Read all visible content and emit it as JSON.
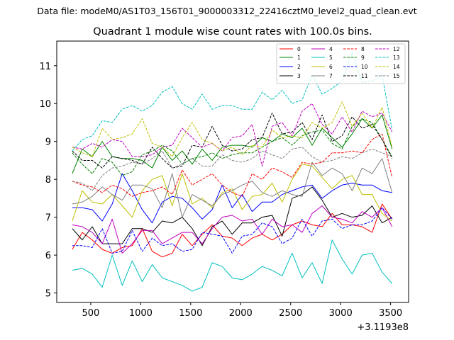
{
  "suptitle": "Data file: modeM0/AS1T03_156T01_9000003312_22416cztM0_level2_quad_clean.evt",
  "chart_data": {
    "type": "line",
    "title": "Quadrant 1 module wise count rates with 100.0s bins.",
    "xlabel": "",
    "ylabel": "",
    "x_offset_label": "+3.1193e8",
    "xlim": [
      160,
      3680
    ],
    "ylim": [
      4.75,
      11.65
    ],
    "xticks": [
      500,
      1000,
      1500,
      2000,
      2500,
      3000,
      3500
    ],
    "yticks": [
      5,
      6,
      7,
      8,
      9,
      10,
      11
    ],
    "grid": false,
    "legend_position": "top-right",
    "x": [
      315,
      415,
      515,
      615,
      715,
      815,
      915,
      1015,
      1115,
      1215,
      1315,
      1415,
      1515,
      1615,
      1715,
      1815,
      1915,
      2015,
      2115,
      2215,
      2315,
      2415,
      2515,
      2615,
      2715,
      2815,
      2915,
      3015,
      3115,
      3215,
      3315,
      3415,
      3515
    ],
    "series": [
      {
        "name": "0",
        "color": "#ff0000",
        "dash": "solid",
        "values": [
          6.15,
          6.6,
          6.4,
          6.15,
          6.05,
          6.2,
          6.25,
          6.7,
          6.1,
          5.95,
          6.05,
          6.55,
          6.25,
          6.55,
          6.8,
          6.5,
          6.45,
          6.25,
          6.45,
          6.55,
          6.4,
          6.55,
          6.8,
          6.9,
          6.8,
          6.75,
          7.1,
          6.8,
          6.8,
          6.75,
          6.6,
          7.35,
          6.95
        ]
      },
      {
        "name": "1",
        "color": "#008000",
        "dash": "solid",
        "values": [
          8.15,
          8.8,
          8.6,
          9.0,
          8.6,
          8.55,
          8.55,
          8.5,
          8.3,
          8.85,
          8.5,
          8.75,
          8.4,
          8.8,
          8.5,
          8.85,
          8.9,
          8.9,
          8.85,
          9.1,
          9.0,
          9.2,
          9.1,
          9.35,
          8.9,
          9.35,
          9.1,
          8.85,
          9.2,
          9.6,
          9.35,
          9.7,
          8.8
        ]
      },
      {
        "name": "2",
        "color": "#0000ff",
        "dash": "solid",
        "values": [
          7.25,
          7.25,
          7.2,
          6.9,
          7.35,
          8.15,
          7.7,
          7.2,
          6.85,
          7.4,
          7.55,
          7.5,
          7.25,
          6.95,
          7.2,
          7.85,
          7.25,
          7.6,
          7.15,
          7.4,
          7.4,
          7.6,
          7.7,
          7.8,
          7.85,
          7.5,
          7.7,
          7.85,
          7.9,
          7.85,
          7.85,
          7.7,
          7.65
        ]
      },
      {
        "name": "3",
        "color": "#000000",
        "dash": "solid",
        "values": [
          6.7,
          6.4,
          6.75,
          6.3,
          6.3,
          6.3,
          6.7,
          6.7,
          6.6,
          6.9,
          6.85,
          7.0,
          6.7,
          6.25,
          6.75,
          6.9,
          6.55,
          6.85,
          6.85,
          7.0,
          7.05,
          6.5,
          7.5,
          7.6,
          7.8,
          7.45,
          7.0,
          7.1,
          7.0,
          7.05,
          7.3,
          6.85,
          7.0
        ]
      },
      {
        "name": "4",
        "color": "#bf00bf",
        "dash": "solid",
        "values": [
          6.8,
          6.75,
          6.6,
          6.3,
          6.95,
          6.05,
          6.3,
          6.65,
          6.65,
          6.3,
          6.45,
          6.6,
          6.6,
          6.3,
          6.7,
          7.0,
          7.05,
          6.9,
          6.95,
          6.55,
          6.95,
          6.75,
          6.8,
          6.6,
          7.1,
          7.3,
          7.0,
          6.95,
          6.85,
          7.15,
          7.0,
          7.25,
          6.75
        ]
      },
      {
        "name": "5",
        "color": "#00bfbf",
        "dash": "solid",
        "values": [
          5.6,
          5.65,
          5.5,
          5.15,
          6.0,
          5.2,
          5.85,
          5.3,
          5.75,
          5.4,
          5.3,
          5.2,
          5.05,
          5.15,
          5.8,
          5.7,
          5.4,
          5.35,
          5.5,
          5.7,
          5.6,
          5.45,
          6.05,
          5.4,
          5.8,
          5.25,
          6.4,
          5.9,
          5.5,
          6.0,
          6.05,
          5.55,
          5.25
        ]
      },
      {
        "name": "6",
        "color": "#bfbf00",
        "dash": "solid",
        "values": [
          6.9,
          7.7,
          7.4,
          7.35,
          7.6,
          7.3,
          7.0,
          7.7,
          8.0,
          8.1,
          7.3,
          8.15,
          7.35,
          7.5,
          7.25,
          7.65,
          7.75,
          7.2,
          7.55,
          7.6,
          7.9,
          7.4,
          8.0,
          8.4,
          8.35,
          8.05,
          7.75,
          8.0,
          8.1,
          7.6,
          7.6,
          7.1,
          6.9
        ]
      },
      {
        "name": "7",
        "color": "#808080",
        "dash": "solid",
        "values": [
          7.35,
          7.4,
          7.55,
          7.8,
          7.6,
          7.45,
          7.85,
          7.85,
          7.75,
          7.25,
          8.15,
          7.0,
          7.6,
          7.45,
          7.3,
          7.6,
          7.7,
          7.85,
          7.95,
          7.65,
          7.55,
          7.7,
          7.6,
          7.55,
          8.45,
          8.1,
          8.3,
          8.15,
          7.7,
          8.3,
          8.15,
          8.55,
          7.65
        ]
      },
      {
        "name": "8",
        "color": "#ff0000",
        "dash": "dashed",
        "values": [
          7.95,
          7.85,
          7.8,
          7.65,
          7.85,
          7.75,
          7.55,
          7.65,
          7.7,
          7.8,
          7.6,
          8.25,
          7.85,
          8.0,
          8.15,
          7.85,
          7.65,
          7.55,
          8.15,
          8.0,
          8.3,
          8.2,
          8.05,
          8.45,
          8.4,
          8.45,
          8.7,
          8.7,
          8.75,
          8.7,
          9.05,
          9.2,
          8.05
        ]
      },
      {
        "name": "9",
        "color": "#008000",
        "dash": "dashed",
        "values": [
          8.7,
          8.4,
          8.15,
          8.55,
          8.45,
          8.1,
          8.2,
          8.65,
          8.75,
          8.9,
          8.75,
          8.4,
          8.55,
          8.6,
          8.7,
          8.55,
          8.65,
          8.7,
          8.7,
          8.85,
          9.0,
          9.1,
          8.9,
          9.15,
          9.25,
          9.3,
          8.95,
          8.8,
          9.4,
          9.6,
          9.5,
          9.05,
          8.6
        ]
      },
      {
        "name": "10",
        "color": "#0000ff",
        "dash": "dashed",
        "values": [
          6.25,
          6.25,
          6.2,
          6.7,
          6.05,
          6.1,
          6.65,
          6.1,
          6.45,
          6.25,
          6.3,
          6.1,
          6.15,
          6.6,
          6.55,
          6.5,
          6.05,
          6.5,
          6.55,
          6.85,
          6.75,
          6.3,
          6.45,
          6.95,
          6.5,
          6.9,
          6.95,
          6.7,
          6.8,
          6.8,
          6.9,
          7.25,
          6.95
        ]
      },
      {
        "name": "11",
        "color": "#000000",
        "dash": "dashed",
        "values": [
          8.75,
          8.5,
          8.5,
          8.3,
          8.6,
          8.55,
          8.5,
          8.4,
          8.85,
          8.55,
          8.3,
          8.35,
          8.9,
          8.85,
          9.4,
          8.9,
          8.75,
          8.8,
          9.05,
          9.1,
          9.75,
          9.2,
          9.25,
          9.5,
          9.05,
          9.7,
          9.0,
          9.15,
          9.65,
          9.35,
          9.45,
          9.05,
          8.55
        ]
      },
      {
        "name": "12",
        "color": "#bf00bf",
        "dash": "dashed",
        "values": [
          8.85,
          8.8,
          8.95,
          8.85,
          9.05,
          9.0,
          8.6,
          8.6,
          8.65,
          8.85,
          8.9,
          9.35,
          9.1,
          8.85,
          8.95,
          8.75,
          9.1,
          9.15,
          9.45,
          8.35,
          9.4,
          9.5,
          9.15,
          9.8,
          10.0,
          9.45,
          9.2,
          9.65,
          9.25,
          9.8,
          9.65,
          9.75,
          9.25
        ]
      },
      {
        "name": "13",
        "color": "#00bfbf",
        "dash": "dashed",
        "values": [
          8.75,
          9.05,
          9.15,
          9.55,
          9.5,
          9.85,
          9.95,
          9.8,
          9.95,
          10.3,
          10.45,
          10.0,
          9.85,
          10.25,
          9.85,
          9.95,
          9.95,
          9.85,
          9.85,
          10.3,
          10.1,
          10.35,
          10.0,
          10.1,
          10.75,
          10.25,
          10.4,
          10.6,
          11.35,
          10.55,
          10.6,
          10.75,
          9.3
        ]
      },
      {
        "name": "14",
        "color": "#bfbf00",
        "dash": "dashed",
        "values": [
          8.85,
          8.7,
          8.6,
          9.35,
          9.05,
          9.1,
          9.2,
          9.6,
          8.95,
          8.85,
          8.6,
          9.1,
          9.5,
          9.05,
          8.95,
          8.75,
          8.85,
          8.65,
          8.9,
          8.85,
          9.3,
          9.1,
          9.15,
          9.1,
          9.5,
          9.35,
          9.5,
          10.05,
          9.4,
          9.75,
          9.35,
          9.9,
          8.85
        ]
      },
      {
        "name": "15",
        "color": "#808080",
        "dash": "dashed",
        "values": [
          7.95,
          7.9,
          7.7,
          8.1,
          8.3,
          8.35,
          8.45,
          8.4,
          8.55,
          8.75,
          8.3,
          8.4,
          8.55,
          8.35,
          8.35,
          8.65,
          8.5,
          8.45,
          8.55,
          8.75,
          8.65,
          8.55,
          8.8,
          8.85,
          8.6,
          8.45,
          8.5,
          8.6,
          8.55,
          8.7,
          8.8,
          8.7,
          8.6
        ]
      }
    ]
  }
}
